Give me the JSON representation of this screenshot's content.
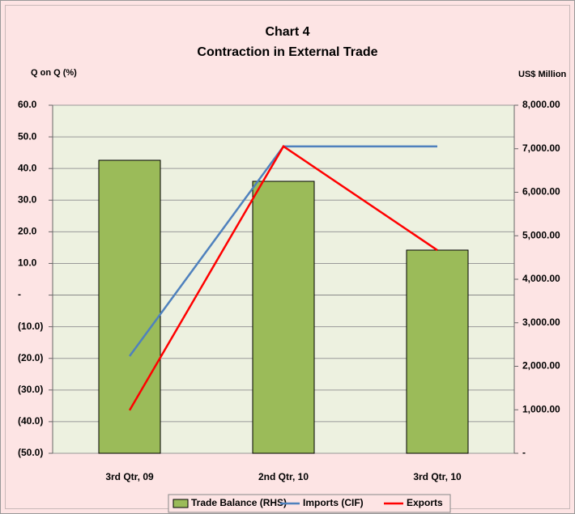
{
  "chart_data": {
    "type": "combo",
    "title": "Chart 4",
    "subtitle": "Contraction in External Trade",
    "y_label": "Q on Q (%)",
    "y2_label": "US$ Million",
    "categories": [
      "3rd Qtr, 09",
      "2nd Qtr, 10",
      "3rd Qtr, 10"
    ],
    "series": [
      {
        "name": "Trade Balance (RHS)",
        "type": "bar",
        "axis": "y2",
        "color": "#9bbb59",
        "values": [
          6735,
          6251,
          4670
        ]
      },
      {
        "name": "Imports (CIF)",
        "type": "line",
        "color": "#4f81bd",
        "values": [
          -19.3,
          47.0,
          47.0
        ]
      },
      {
        "name": "Exports",
        "type": "line",
        "color": "#ff0000",
        "values": [
          -36.4,
          47.0,
          14.2
        ]
      }
    ],
    "ylim": [
      -50,
      60
    ],
    "yticks": [
      {
        "value": 60,
        "label": "60.0"
      },
      {
        "value": 50,
        "label": "50.0"
      },
      {
        "value": 40,
        "label": "40.0"
      },
      {
        "value": 30,
        "label": "30.0"
      },
      {
        "value": 20,
        "label": "20.0"
      },
      {
        "value": 10,
        "label": "10.0"
      },
      {
        "value": 0,
        "label": "-"
      },
      {
        "value": -10,
        "label": "(10.0)"
      },
      {
        "value": -20,
        "label": "(20.0)"
      },
      {
        "value": -30,
        "label": "(30.0)"
      },
      {
        "value": -40,
        "label": "(40.0)"
      },
      {
        "value": -50,
        "label": "(50.0)"
      }
    ],
    "y2lim": [
      0,
      8000
    ],
    "y2ticks": [
      {
        "value": 8000,
        "label": "8,000.00"
      },
      {
        "value": 7000,
        "label": "7,000.00"
      },
      {
        "value": 6000,
        "label": "6,000.00"
      },
      {
        "value": 5000,
        "label": "5,000.00"
      },
      {
        "value": 4000,
        "label": "4,000.00"
      },
      {
        "value": 3000,
        "label": "3,000.00"
      },
      {
        "value": 2000,
        "label": "2,000.00"
      },
      {
        "value": 1000,
        "label": "1,000.00"
      },
      {
        "value": 0,
        "label": "-"
      }
    ],
    "grid": true,
    "legend": "bottom"
  }
}
